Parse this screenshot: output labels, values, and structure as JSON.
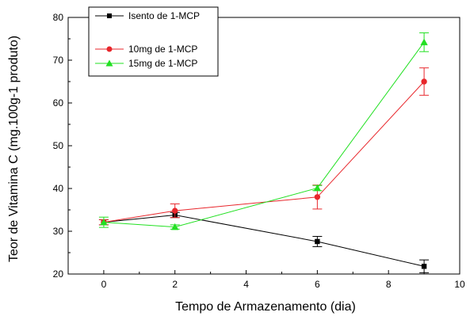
{
  "chart_data": {
    "type": "line",
    "xlabel": "Tempo de Armazenamento (dia)",
    "ylabel": "Teor de Vitamina C (mg.100g-1 produto)",
    "xlim": [
      -1,
      10
    ],
    "ylim": [
      20,
      80
    ],
    "xticks": [
      0,
      2,
      4,
      6,
      8,
      10
    ],
    "yticks": [
      20,
      30,
      40,
      50,
      60,
      70,
      80
    ],
    "grid": false,
    "legend_position": "top-left",
    "series": [
      {
        "name": "Isento de 1-MCP",
        "color": "#000000",
        "marker": "square",
        "points": [
          {
            "x": 0,
            "y": 32.1,
            "err": 0.6
          },
          {
            "x": 2,
            "y": 33.8,
            "err": 0.6
          },
          {
            "x": 6,
            "y": 27.6,
            "err": 1.2
          },
          {
            "x": 9,
            "y": 21.8,
            "err": 1.5
          }
        ]
      },
      {
        "name": "10mg de 1-MCP",
        "color": "#e8262b",
        "marker": "circle",
        "points": [
          {
            "x": 0,
            "y": 32.1,
            "err": 0.6
          },
          {
            "x": 2,
            "y": 34.8,
            "err": 1.6
          },
          {
            "x": 6,
            "y": 38.0,
            "err": 2.8
          },
          {
            "x": 9,
            "y": 65.0,
            "err": 3.2
          }
        ]
      },
      {
        "name": "15mg de 1-MCP",
        "color": "#22e022",
        "marker": "triangle",
        "points": [
          {
            "x": 0,
            "y": 32.1,
            "err": 1.2
          },
          {
            "x": 2,
            "y": 31.0,
            "err": 0.5
          },
          {
            "x": 6,
            "y": 40.1,
            "err": 0.6
          },
          {
            "x": 9,
            "y": 74.2,
            "err": 2.2
          }
        ]
      }
    ]
  }
}
